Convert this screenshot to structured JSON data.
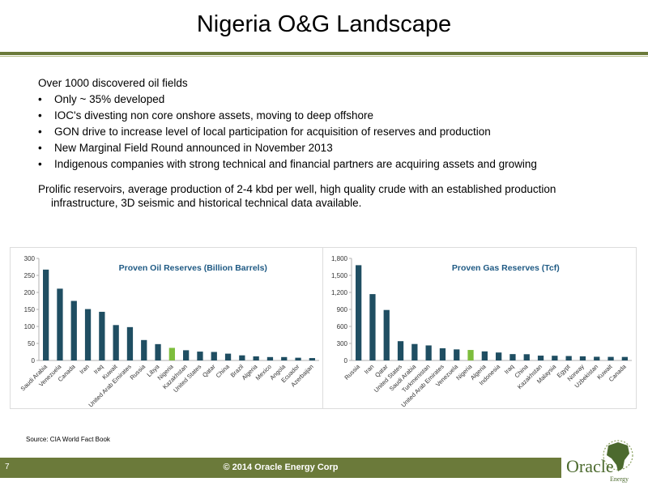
{
  "slide": {
    "title": "Nigeria O&G Landscape",
    "intro": "Over 1000  discovered oil fields",
    "bullets": [
      "Only ~ 35% developed",
      "IOC's divesting non core onshore assets, moving to deep offshore",
      "GON drive to increase level of local participation for acquisition of reserves and production",
      "New  Marginal Field Round announced in November 2013",
      "Indigenous companies with strong technical and financial partners are acquiring assets and growing"
    ],
    "paragraph_line1": "Prolific reservoirs, average production of 2-4 kbd per well, high quality crude with an established production",
    "paragraph_line2": "infrastructure, 3D seismic and historical technical data available.",
    "source": "Source: CIA World Fact Book",
    "footer_page": "7",
    "footer_copyright": "© 2014 Oracle Energy Corp",
    "logo_word": "Oracle",
    "logo_sub": "Energy"
  },
  "colors": {
    "accent": "#6b7a3a",
    "bar": "#1f4e62",
    "highlight": "#7dbd3c",
    "chart_title": "#1f5a84"
  },
  "chart_data": [
    {
      "type": "bar",
      "title": "Proven Oil Reserves (Billion Barrels)",
      "categories": [
        "Saudi Arabia",
        "Venezuela",
        "Canada",
        "Iran",
        "Iraq",
        "Kuwait",
        "United Arab Emirates",
        "Russia",
        "Libya",
        "Nigeria",
        "Kazakhstan",
        "United States",
        "Qatar",
        "China",
        "Brazil",
        "Algeria",
        "Mexico",
        "Angola",
        "Ecuador",
        "Azerbaijan"
      ],
      "values": [
        267,
        211,
        175,
        151,
        143,
        104,
        98,
        60,
        48,
        37,
        30,
        26,
        25,
        20,
        15,
        12,
        10,
        10,
        8,
        7
      ],
      "highlight": "Nigeria",
      "ylim": [
        0,
        300
      ],
      "yticks": [
        "0",
        "50",
        "100",
        "150",
        "200",
        "250",
        "300"
      ],
      "grid": false
    },
    {
      "type": "bar",
      "title": "Proven Gas Reserves (Tcf)",
      "categories": [
        "Russia",
        "Iran",
        "Qatar",
        "United States",
        "Saudi Arabia",
        "Turkmenistan",
        "United Arab Emirates",
        "Venezuela",
        "Nigeria",
        "Algeria",
        "Indonesia",
        "Iraq",
        "China",
        "Kazakhstan",
        "Malaysia",
        "Egypt",
        "Norway",
        "Uzbekistan",
        "Kuwait",
        "Canada"
      ],
      "values": [
        1680,
        1170,
        890,
        340,
        290,
        265,
        215,
        195,
        185,
        160,
        140,
        112,
        110,
        85,
        83,
        78,
        73,
        65,
        63,
        62
      ],
      "highlight": "Nigeria",
      "ylim": [
        0,
        1800
      ],
      "yticks": [
        "0",
        "300",
        "600",
        "900",
        "1,200",
        "1,500",
        "1,800"
      ],
      "grid": false
    }
  ]
}
